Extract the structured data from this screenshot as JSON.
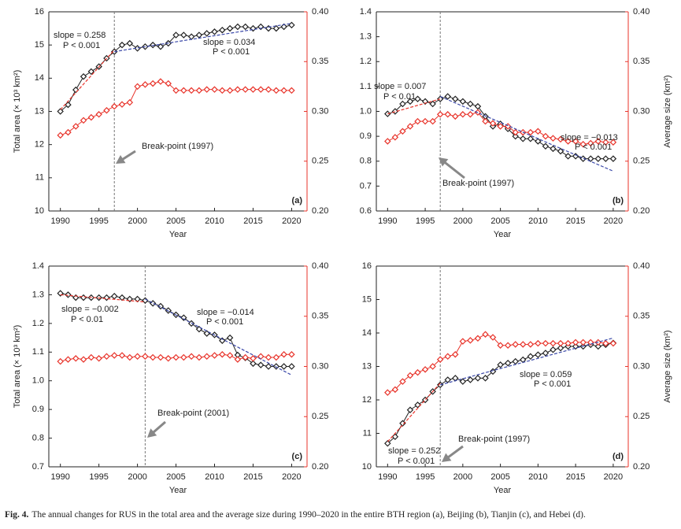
{
  "chart_data": [
    {
      "type": "line",
      "panel_label": "(a)",
      "xlabel": "Year",
      "ylabel": "Total area (× 10³ km²)",
      "x": [
        1990,
        1991,
        1992,
        1993,
        1994,
        1995,
        1996,
        1997,
        1998,
        1999,
        2000,
        2001,
        2002,
        2003,
        2004,
        2005,
        2006,
        2007,
        2008,
        2009,
        2010,
        2011,
        2012,
        2013,
        2014,
        2015,
        2016,
        2017,
        2018,
        2019,
        2020
      ],
      "xlim": [
        1988.5,
        2022
      ],
      "xticks": [
        1990,
        1995,
        2000,
        2005,
        2010,
        2015,
        2020
      ],
      "ylim": [
        10,
        16
      ],
      "yticks": [
        10,
        11,
        12,
        13,
        14,
        15,
        16
      ],
      "y2lim": [
        0.2,
        0.4
      ],
      "y2ticks": [
        {
          "value": 0.2,
          "label": "0.20"
        },
        0.25,
        {
          "value": 0.3,
          "label": "0.30"
        },
        0.35,
        {
          "value": 0.4,
          "label": "0.40"
        }
      ],
      "series": [
        {
          "color": "#222222",
          "axis": "y",
          "values": [
            13.0,
            13.2,
            13.65,
            14.05,
            14.2,
            14.35,
            14.6,
            14.8,
            15.0,
            15.05,
            14.9,
            14.95,
            15.0,
            14.95,
            15.05,
            15.3,
            15.3,
            15.25,
            15.3,
            15.35,
            15.4,
            15.45,
            15.5,
            15.55,
            15.55,
            15.5,
            15.55,
            15.5,
            15.5,
            15.55,
            15.6
          ]
        },
        {
          "color": "#e8332a",
          "axis": "y2",
          "values": [
            0.276,
            0.279,
            0.285,
            0.291,
            0.294,
            0.297,
            0.301,
            0.305,
            0.307,
            0.309,
            0.325,
            0.327,
            0.328,
            0.33,
            0.328,
            0.321,
            0.321,
            0.321,
            0.321,
            0.322,
            0.322,
            0.321,
            0.321,
            0.322,
            0.322,
            0.322,
            0.322,
            0.322,
            0.321,
            0.321,
            0.321
          ]
        }
      ],
      "fits": [
        {
          "x": [
            1990,
            1997
          ],
          "values": [
            13.05,
            14.85
          ],
          "color": "#e8332a"
        },
        {
          "x": [
            1997,
            2020
          ],
          "values": [
            14.8,
            15.65
          ],
          "color": "#3a48a8"
        }
      ],
      "breakpoint": 1997,
      "breakpoint_label": "Break-point (1997)",
      "annotations": [
        {
          "text": "slope = 0.258",
          "color": "#e8332a"
        },
        {
          "text": "P < 0.001",
          "color": "#e8332a"
        },
        {
          "text": "slope = 0.034",
          "color": "#3a48a8"
        },
        {
          "text": "P < 0.001",
          "color": "#3a48a8"
        }
      ]
    },
    {
      "type": "line",
      "panel_label": "(b)",
      "xlabel": "Year",
      "y2label": "Average size (km²)",
      "x": [
        1990,
        1991,
        1992,
        1993,
        1994,
        1995,
        1996,
        1997,
        1998,
        1999,
        2000,
        2001,
        2002,
        2003,
        2004,
        2005,
        2006,
        2007,
        2008,
        2009,
        2010,
        2011,
        2012,
        2013,
        2014,
        2015,
        2016,
        2017,
        2018,
        2019,
        2020
      ],
      "xlim": [
        1988.5,
        2022
      ],
      "xticks": [
        1990,
        1995,
        2000,
        2005,
        2010,
        2015,
        2020
      ],
      "ylim": [
        0.6,
        1.4
      ],
      "yticks": [
        0.6,
        0.7,
        0.8,
        0.9,
        {
          "value": 1,
          "label": "1.0"
        },
        1.1,
        1.2,
        1.3,
        1.4
      ],
      "y2lim": [
        0.2,
        0.4
      ],
      "y2ticks": [
        {
          "value": 0.2,
          "label": "0.20"
        },
        0.25,
        {
          "value": 0.3,
          "label": "0.30"
        },
        0.35,
        {
          "value": 0.4,
          "label": "0.40"
        }
      ],
      "series": [
        {
          "color": "#222222",
          "axis": "y",
          "values": [
            0.99,
            1.0,
            1.03,
            1.04,
            1.05,
            1.04,
            1.03,
            1.05,
            1.06,
            1.05,
            1.04,
            1.03,
            1.02,
            0.98,
            0.94,
            0.95,
            0.93,
            0.9,
            0.89,
            0.89,
            0.88,
            0.86,
            0.85,
            0.84,
            0.82,
            0.82,
            0.81,
            0.81,
            0.81,
            0.81,
            0.81
          ]
        },
        {
          "color": "#e8332a",
          "axis": "y2",
          "values": [
            0.27,
            0.274,
            0.28,
            0.285,
            0.29,
            0.29,
            0.29,
            0.297,
            0.297,
            0.295,
            0.297,
            0.297,
            0.299,
            0.29,
            0.288,
            0.285,
            0.285,
            0.279,
            0.279,
            0.279,
            0.28,
            0.275,
            0.273,
            0.272,
            0.27,
            0.27,
            0.267,
            0.268,
            0.27,
            0.269,
            0.269
          ]
        }
      ],
      "fits": [
        {
          "x": [
            1990,
            1997
          ],
          "values": [
            0.99,
            1.05
          ],
          "color": "#e8332a"
        },
        {
          "x": [
            1997,
            2020
          ],
          "values": [
            1.06,
            0.76
          ],
          "color": "#3a48a8"
        }
      ],
      "breakpoint": 1997,
      "breakpoint_label": "Break-point (1997)",
      "annotations": [
        {
          "text": "slope = 0.007",
          "color": "#e8332a"
        },
        {
          "text": "P < 0.01",
          "color": "#e8332a"
        },
        {
          "text": "slope = −0.013",
          "color": "#3a48a8"
        },
        {
          "text": "P < 0.001",
          "color": "#3a48a8"
        }
      ]
    },
    {
      "type": "line",
      "panel_label": "(c)",
      "xlabel": "Year",
      "ylabel": "Total area (× 10³ km²)",
      "x": [
        1990,
        1991,
        1992,
        1993,
        1994,
        1995,
        1996,
        1997,
        1998,
        1999,
        2000,
        2001,
        2002,
        2003,
        2004,
        2005,
        2006,
        2007,
        2008,
        2009,
        2010,
        2011,
        2012,
        2013,
        2014,
        2015,
        2016,
        2017,
        2018,
        2019,
        2020
      ],
      "xlim": [
        1988.5,
        2022
      ],
      "xticks": [
        1990,
        1995,
        2000,
        2005,
        2010,
        2015,
        2020
      ],
      "ylim": [
        0.7,
        1.4
      ],
      "yticks": [
        0.7,
        0.8,
        0.9,
        {
          "value": 1,
          "label": "1.0"
        },
        1.1,
        1.2,
        1.3,
        1.4
      ],
      "y2lim": [
        0.2,
        0.4
      ],
      "y2ticks": [
        {
          "value": 0.2,
          "label": "0.20"
        },
        0.25,
        {
          "value": 0.3,
          "label": "0.30"
        },
        0.35,
        {
          "value": 0.4,
          "label": "0.40"
        }
      ],
      "series": [
        {
          "color": "#222222",
          "axis": "y",
          "values": [
            1.305,
            1.3,
            1.29,
            1.29,
            1.29,
            1.29,
            1.29,
            1.295,
            1.29,
            1.285,
            1.285,
            1.28,
            1.27,
            1.26,
            1.245,
            1.23,
            1.22,
            1.2,
            1.18,
            1.165,
            1.16,
            1.14,
            1.15,
            1.09,
            1.08,
            1.06,
            1.055,
            1.05,
            1.05,
            1.05,
            1.05
          ]
        },
        {
          "color": "#e8332a",
          "axis": "y2",
          "values": [
            0.305,
            0.307,
            0.308,
            0.307,
            0.309,
            0.308,
            0.31,
            0.311,
            0.311,
            0.309,
            0.31,
            0.31,
            0.309,
            0.309,
            0.308,
            0.309,
            0.309,
            0.31,
            0.309,
            0.31,
            0.311,
            0.312,
            0.311,
            0.307,
            0.309,
            0.308,
            0.31,
            0.309,
            0.309,
            0.312,
            0.312
          ]
        }
      ],
      "fits": [
        {
          "x": [
            1990,
            2001
          ],
          "values": [
            1.3,
            1.275
          ],
          "color": "#e8332a"
        },
        {
          "x": [
            2001,
            2020
          ],
          "values": [
            1.285,
            1.02
          ],
          "color": "#3a48a8"
        }
      ],
      "breakpoint": 2001,
      "breakpoint_label": "Break-point (2001)",
      "annotations": [
        {
          "text": "slope = −0.002",
          "color": "#e8332a"
        },
        {
          "text": "P < 0.01",
          "color": "#e8332a"
        },
        {
          "text": "slope = −0.014",
          "color": "#3a48a8"
        },
        {
          "text": "P < 0.001",
          "color": "#3a48a8"
        }
      ]
    },
    {
      "type": "line",
      "panel_label": "(d)",
      "xlabel": "Year",
      "y2label": "Average size (km²)",
      "x": [
        1990,
        1991,
        1992,
        1993,
        1994,
        1995,
        1996,
        1997,
        1998,
        1999,
        2000,
        2001,
        2002,
        2003,
        2004,
        2005,
        2006,
        2007,
        2008,
        2009,
        2010,
        2011,
        2012,
        2013,
        2014,
        2015,
        2016,
        2017,
        2018,
        2019,
        2020
      ],
      "xlim": [
        1988.5,
        2022
      ],
      "xticks": [
        1990,
        1995,
        2000,
        2005,
        2010,
        2015,
        2020
      ],
      "ylim": [
        10,
        16
      ],
      "yticks": [
        10,
        11,
        12,
        13,
        14,
        15,
        16
      ],
      "y2lim": [
        0.2,
        0.4
      ],
      "y2ticks": [
        {
          "value": 0.2,
          "label": "0.20"
        },
        0.25,
        {
          "value": 0.3,
          "label": "0.30"
        },
        0.35,
        {
          "value": 0.4,
          "label": "0.40"
        }
      ],
      "series": [
        {
          "color": "#222222",
          "axis": "y",
          "values": [
            10.7,
            10.9,
            11.3,
            11.7,
            11.85,
            12.0,
            12.25,
            12.45,
            12.6,
            12.65,
            12.55,
            12.6,
            12.65,
            12.65,
            12.85,
            13.05,
            13.1,
            13.15,
            13.2,
            13.3,
            13.35,
            13.4,
            13.5,
            13.55,
            13.6,
            13.6,
            13.6,
            13.65,
            13.6,
            13.65,
            13.7
          ]
        },
        {
          "color": "#e8332a",
          "axis": "y2",
          "values": [
            0.274,
            0.277,
            0.285,
            0.291,
            0.294,
            0.297,
            0.3,
            0.307,
            0.31,
            0.312,
            0.325,
            0.326,
            0.328,
            0.332,
            0.329,
            0.321,
            0.321,
            0.322,
            0.322,
            0.322,
            0.323,
            0.323,
            0.323,
            0.323,
            0.323,
            0.324,
            0.324,
            0.324,
            0.324,
            0.323,
            0.323
          ]
        }
      ],
      "fits": [
        {
          "x": [
            1990,
            1997
          ],
          "values": [
            10.75,
            12.5
          ],
          "color": "#e8332a"
        },
        {
          "x": [
            1997,
            2020
          ],
          "values": [
            12.45,
            13.85
          ],
          "color": "#3a48a8"
        }
      ],
      "breakpoint": 1997,
      "breakpoint_label": "Break-point (1997)",
      "annotations": [
        {
          "text": "slope = 0.252",
          "color": "#e8332a"
        },
        {
          "text": "P < 0.001",
          "color": "#e8332a"
        },
        {
          "text": "slope = 0.059",
          "color": "#3a48a8"
        },
        {
          "text": "P < 0.001",
          "color": "#3a48a8"
        }
      ]
    }
  ],
  "caption_label": "Fig. 4.",
  "caption": "The annual changes for RUS in the total area and the average size during 1990–2020 in the entire BTH region (a), Beijing (b), Tianjin (c), and Hebei (d)."
}
